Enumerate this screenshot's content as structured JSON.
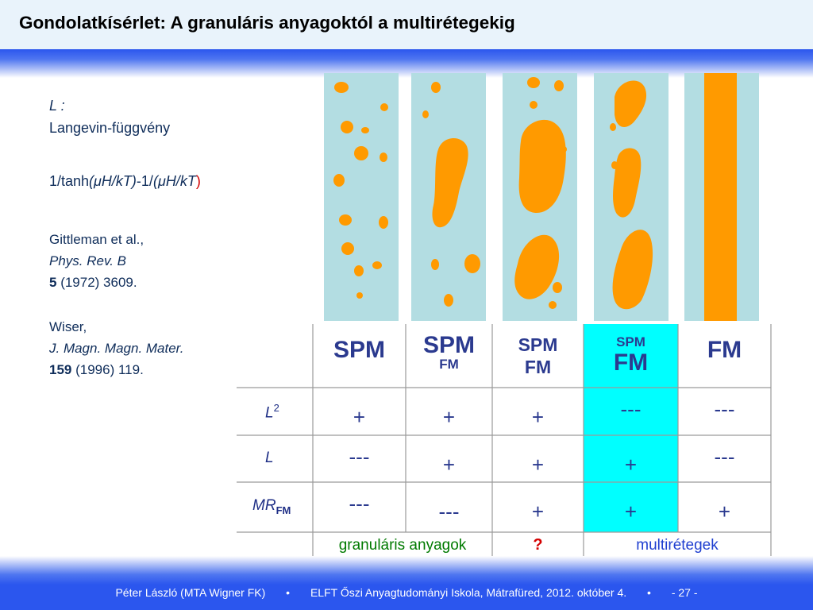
{
  "title": "Gondolatkísérlet: A granuláris anyagoktól a multirétegekig",
  "notes": {
    "l_label": "L :",
    "langevin": "Langevin-függvény",
    "formula": {
      "part1": "1/tanh",
      "part2": "(",
      "mu1": "μ",
      "part3": "H/kT)",
      "part4": "-1/",
      "part5": "(",
      "mu2": "μ",
      "part6": "H/kT",
      "part7": ")"
    },
    "ref1": {
      "authors": "Gittleman et al.,",
      "journal": "Phys. Rev. B",
      "volume": "5",
      "rest": " (1972) 3609."
    },
    "ref2": {
      "authors": "Wiser,",
      "journal": "J. Magn. Magn. Mater.",
      "volume": "159",
      "rest": " (1996) 119."
    }
  },
  "colors": {
    "stripe_bg": "#b3dde2",
    "particle": "#ff9a00",
    "highlight": "#00ffff",
    "text_blue": "#2b3a8f",
    "green": "#007a00",
    "red": "#d40000"
  },
  "table": {
    "columns": [
      {
        "main": "SPM",
        "sub": ""
      },
      {
        "main": "SPM",
        "sub": "FM"
      },
      {
        "main": "SPM",
        "sub": "FM"
      },
      {
        "main": "SPM",
        "sub": "FM"
      },
      {
        "main": "FM",
        "sub": ""
      }
    ],
    "rows": [
      {
        "label": "L",
        "sup": "2",
        "sub": "",
        "values": [
          "+",
          "+",
          "+",
          "---",
          "---"
        ]
      },
      {
        "label": "L",
        "sup": "",
        "sub": "",
        "values": [
          "---",
          "+",
          "+",
          "+",
          "---"
        ]
      },
      {
        "label": "MR",
        "sup": "",
        "sub": "FM",
        "values": [
          "---",
          "---",
          "+",
          "+",
          "+"
        ]
      }
    ],
    "footer": {
      "granular": "granuláris anyagok",
      "question": "?",
      "multi": "multirétegek"
    }
  },
  "footer": {
    "author": "Péter László (MTA Wigner FK)",
    "bullet": "•",
    "event": "ELFT Őszi Anyagtudományi Iskola, Mátrafüred, 2012. október 4.",
    "page": "- 27 -"
  }
}
